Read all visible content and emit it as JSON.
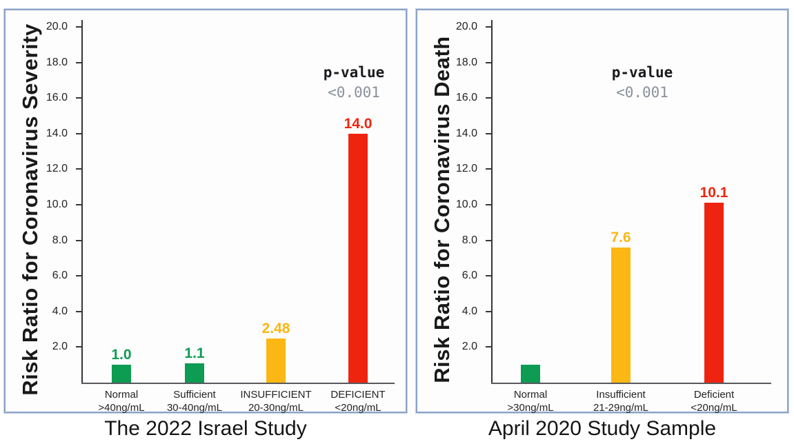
{
  "figure": {
    "background": "#ffffff",
    "panel_border_color": "#8ba3c8"
  },
  "panels": [
    {
      "caption": "The 2022 Israel Study"
    },
    {
      "caption": "April 2020 Study Sample"
    }
  ],
  "chart_data": [
    {
      "type": "bar",
      "title": "The 2022 Israel Study",
      "ylabel": "Risk Ratio for Coronavirus Severity",
      "xlabel": "",
      "ylim": [
        0,
        20
      ],
      "yticks": [
        2,
        4,
        6,
        8,
        10,
        12,
        14,
        16,
        18,
        20
      ],
      "ytick_labels": [
        "2.0",
        "4.0",
        "6.0",
        "8.0",
        "10.0",
        "12.0",
        "14.0",
        "16.0",
        "18.0",
        "20.0"
      ],
      "grid": false,
      "legend": null,
      "categories": [
        {
          "name": "Normal",
          "range": ">40ng/mL"
        },
        {
          "name": "Sufficient",
          "range": "30-40ng/mL"
        },
        {
          "name": "INSUFFICIENT",
          "range": "20-30ng/mL"
        },
        {
          "name": "DEFICIENT",
          "range": "<20ng/mL"
        }
      ],
      "values": [
        1.0,
        1.1,
        2.48,
        14.0
      ],
      "bar_labels": [
        "1.0",
        "1.1",
        "2.48",
        "14.0"
      ],
      "bar_colors": [
        "#0e9b52",
        "#0e9b52",
        "#fbb713",
        "#ef2410"
      ],
      "annotation": {
        "line1": "p-value",
        "line2": "<0.001",
        "line2_color": "#8a919b"
      }
    },
    {
      "type": "bar",
      "title": "April 2020 Study Sample",
      "ylabel": "Risk Ratio for Coronavirus Death",
      "xlabel": "",
      "ylim": [
        0,
        20
      ],
      "yticks": [
        2,
        4,
        6,
        8,
        10,
        12,
        14,
        16,
        18,
        20
      ],
      "ytick_labels": [
        "2.0",
        "4.0",
        "6.0",
        "8.0",
        "10.0",
        "12.0",
        "14.0",
        "16.0",
        "18.0",
        "20.0"
      ],
      "grid": false,
      "legend": null,
      "categories": [
        {
          "name": "Normal",
          "range": ">30ng/mL"
        },
        {
          "name": "Insufficient",
          "range": "21-29ng/mL"
        },
        {
          "name": "Deficient",
          "range": "<20ng/mL"
        }
      ],
      "values": [
        1.0,
        7.6,
        10.1
      ],
      "bar_labels": [
        "",
        "7.6",
        "10.1"
      ],
      "bar_colors": [
        "#0e9b52",
        "#fbb713",
        "#ef2410"
      ],
      "annotation": {
        "line1": "p-value",
        "line2": "<0.001",
        "line2_color": "#8a919b"
      }
    }
  ]
}
